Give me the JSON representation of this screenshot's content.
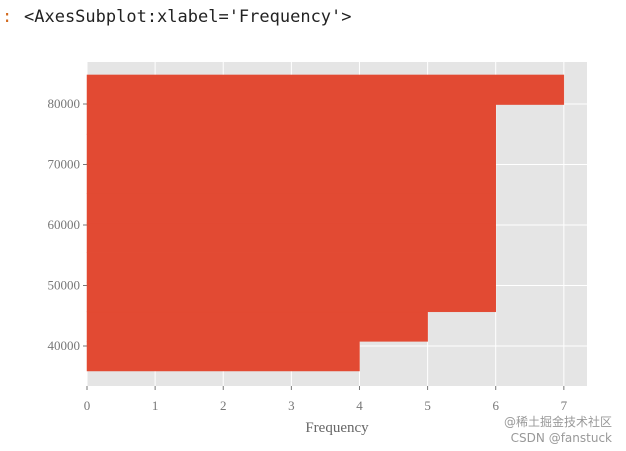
{
  "prompt": ":",
  "output_text": "<AxesSubplot:xlabel='Frequency'>",
  "watermarks": [
    "@稀土掘金技术社区",
    "CSDN @fanstuck"
  ],
  "chart_data": {
    "type": "histogram",
    "orientation": "horizontal",
    "cumulative": true,
    "xlabel": "Frequency",
    "bins": [
      35870,
      40763,
      45656,
      50549,
      55442,
      60335,
      65228,
      70121,
      75014,
      79907,
      84800
    ],
    "counts": [
      4,
      5,
      6,
      6,
      6,
      6,
      6,
      6,
      6,
      7
    ],
    "color": "#E24A33",
    "background": "#E5E5E5",
    "grid": true,
    "xlim": [
      0,
      7.34
    ],
    "xticks": [
      0,
      1,
      2,
      3,
      4,
      5,
      6,
      7
    ],
    "ylim": [
      33390,
      86940
    ],
    "yticks": [
      40000,
      50000,
      60000,
      70000,
      80000
    ]
  }
}
